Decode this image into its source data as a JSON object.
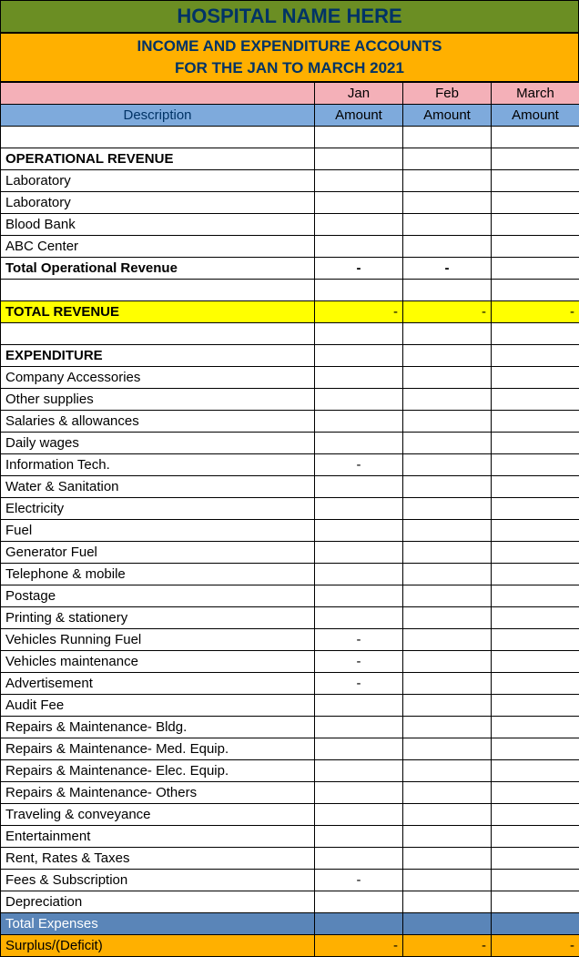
{
  "header": {
    "hospital_name": "HOSPITAL NAME HERE",
    "title_line1": "INCOME AND  EXPENDITURE ACCOUNTS",
    "title_line2": "FOR THE JAN TO MARCH 2021",
    "description_label": "Description",
    "months": [
      "Jan",
      "Feb",
      "March"
    ],
    "amount_label": "Amount"
  },
  "sections": {
    "op_rev_header": "OPERATIONAL REVENUE",
    "op_rev_rows": [
      "Laboratory",
      "Laboratory",
      "Blood Bank",
      "ABC Center"
    ],
    "total_op_rev": {
      "label": "Total Operational Revenue",
      "jan": "-",
      "feb": "-",
      "mar": ""
    },
    "total_revenue": {
      "label": "TOTAL REVENUE",
      "jan": "-",
      "feb": "-",
      "mar": "-"
    },
    "exp_header": "EXPENDITURE",
    "exp_rows": [
      {
        "label": "Company Accessories",
        "jan": "",
        "feb": "",
        "mar": ""
      },
      {
        "label": "Other supplies",
        "jan": "",
        "feb": "",
        "mar": ""
      },
      {
        "label": "Salaries & allowances",
        "jan": "",
        "feb": "",
        "mar": ""
      },
      {
        "label": "Daily wages",
        "jan": "",
        "feb": "",
        "mar": ""
      },
      {
        "label": "Information Tech.",
        "jan": "-",
        "feb": "",
        "mar": ""
      },
      {
        "label": "Water & Sanitation",
        "jan": "",
        "feb": "",
        "mar": ""
      },
      {
        "label": "Electricity",
        "jan": "",
        "feb": "",
        "mar": ""
      },
      {
        "label": "Fuel",
        "jan": "",
        "feb": "",
        "mar": ""
      },
      {
        "label": "Generator Fuel",
        "jan": "",
        "feb": "",
        "mar": ""
      },
      {
        "label": "Telephone & mobile",
        "jan": "",
        "feb": "",
        "mar": ""
      },
      {
        "label": "Postage",
        "jan": "",
        "feb": "",
        "mar": ""
      },
      {
        "label": "Printing & stationery",
        "jan": "",
        "feb": "",
        "mar": ""
      },
      {
        "label": "Vehicles Running Fuel",
        "jan": "-",
        "feb": "",
        "mar": ""
      },
      {
        "label": "Vehicles maintenance",
        "jan": "-",
        "feb": "",
        "mar": ""
      },
      {
        "label": "Advertisement",
        "jan": "-",
        "feb": "",
        "mar": ""
      },
      {
        "label": "Audit Fee",
        "jan": "",
        "feb": "",
        "mar": ""
      },
      {
        "label": "Repairs & Maintenance- Bldg.",
        "jan": "",
        "feb": "",
        "mar": ""
      },
      {
        "label": "Repairs & Maintenance- Med. Equip.",
        "jan": "",
        "feb": "",
        "mar": ""
      },
      {
        "label": "Repairs & Maintenance- Elec. Equip.",
        "jan": "",
        "feb": "",
        "mar": ""
      },
      {
        "label": "Repairs & Maintenance- Others",
        "jan": "",
        "feb": "",
        "mar": ""
      },
      {
        "label": "Traveling & conveyance",
        "jan": "",
        "feb": "",
        "mar": ""
      },
      {
        "label": "Entertainment",
        "jan": "",
        "feb": "",
        "mar": ""
      },
      {
        "label": "Rent, Rates & Taxes",
        "jan": "",
        "feb": "",
        "mar": ""
      },
      {
        "label": "Fees & Subscription",
        "jan": "-",
        "feb": "",
        "mar": ""
      },
      {
        "label": "Depreciation",
        "jan": "",
        "feb": "",
        "mar": ""
      }
    ],
    "total_expenses": {
      "label": "Total Expenses",
      "jan": "",
      "feb": "",
      "mar": ""
    },
    "surplus": {
      "label": "Surplus/(Deficit)",
      "jan": "-",
      "feb": "-",
      "mar": "-"
    }
  },
  "colors": {
    "olive": "#6b8e23",
    "orange": "#ffb000",
    "pink": "#f4b0b8",
    "blue": "#7eaadc",
    "yellow": "#ffff00",
    "steel": "#5a85b8",
    "navy_text": "#003366"
  }
}
